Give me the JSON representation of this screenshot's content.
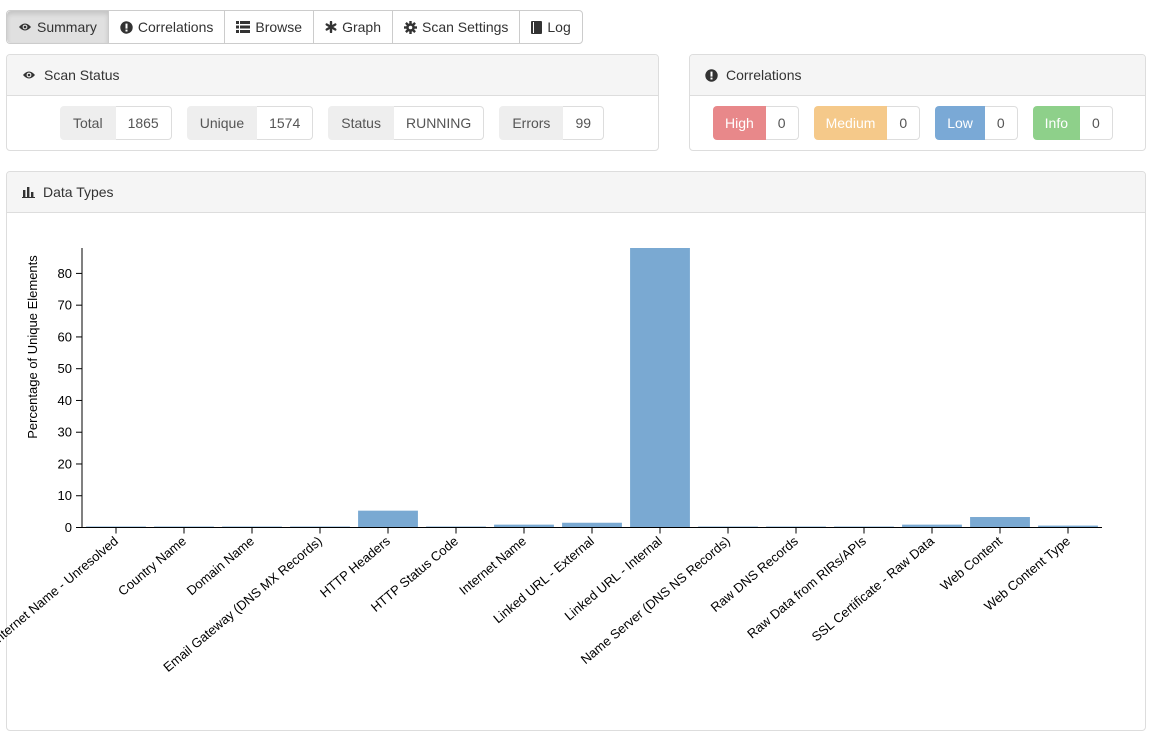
{
  "tabs": [
    {
      "label": "Summary",
      "icon": "eye-icon",
      "active": true
    },
    {
      "label": "Correlations",
      "icon": "exclamation-circle-icon",
      "active": false
    },
    {
      "label": "Browse",
      "icon": "list-icon",
      "active": false
    },
    {
      "label": "Graph",
      "icon": "asterisk-icon",
      "active": false
    },
    {
      "label": "Scan Settings",
      "icon": "gear-icon",
      "active": false
    },
    {
      "label": "Log",
      "icon": "book-icon",
      "active": false
    }
  ],
  "scan_status": {
    "title": "Scan Status",
    "stats": [
      {
        "label": "Total",
        "value": "1865"
      },
      {
        "label": "Unique",
        "value": "1574"
      },
      {
        "label": "Status",
        "value": "RUNNING"
      },
      {
        "label": "Errors",
        "value": "99"
      }
    ]
  },
  "correlations": {
    "title": "Correlations",
    "items": [
      {
        "label": "High",
        "value": "0",
        "color": "#e8888a"
      },
      {
        "label": "Medium",
        "value": "0",
        "color": "#f5c98a"
      },
      {
        "label": "Low",
        "value": "0",
        "color": "#7aa9d6"
      },
      {
        "label": "Info",
        "value": "0",
        "color": "#8ed08a"
      }
    ]
  },
  "data_types": {
    "title": "Data Types"
  },
  "chart_data": {
    "type": "bar",
    "ylabel": "Percentage of Unique Elements",
    "xlabel": "",
    "ylim": [
      0,
      88
    ],
    "yticks": [
      0,
      10,
      20,
      30,
      40,
      50,
      60,
      70,
      80
    ],
    "categories": [
      "Internet Name - Unresolved",
      "Country Name",
      "Domain Name",
      "Email Gateway (DNS MX Records)",
      "HTTP Headers",
      "HTTP Status Code",
      "Internet Name",
      "Linked URL - External",
      "Linked URL - Internal",
      "Name Server (DNS NS Records)",
      "Raw DNS Records",
      "Raw Data from RIRs/APIs",
      "SSL Certificate - Raw Data",
      "Web Content",
      "Web Content Type"
    ],
    "values": [
      0.1,
      0.1,
      0.1,
      0.1,
      5.3,
      0.1,
      0.9,
      1.5,
      88,
      0.1,
      0.1,
      0.1,
      0.9,
      3.3,
      0.6
    ],
    "bar_color": "#7aa9d2"
  }
}
